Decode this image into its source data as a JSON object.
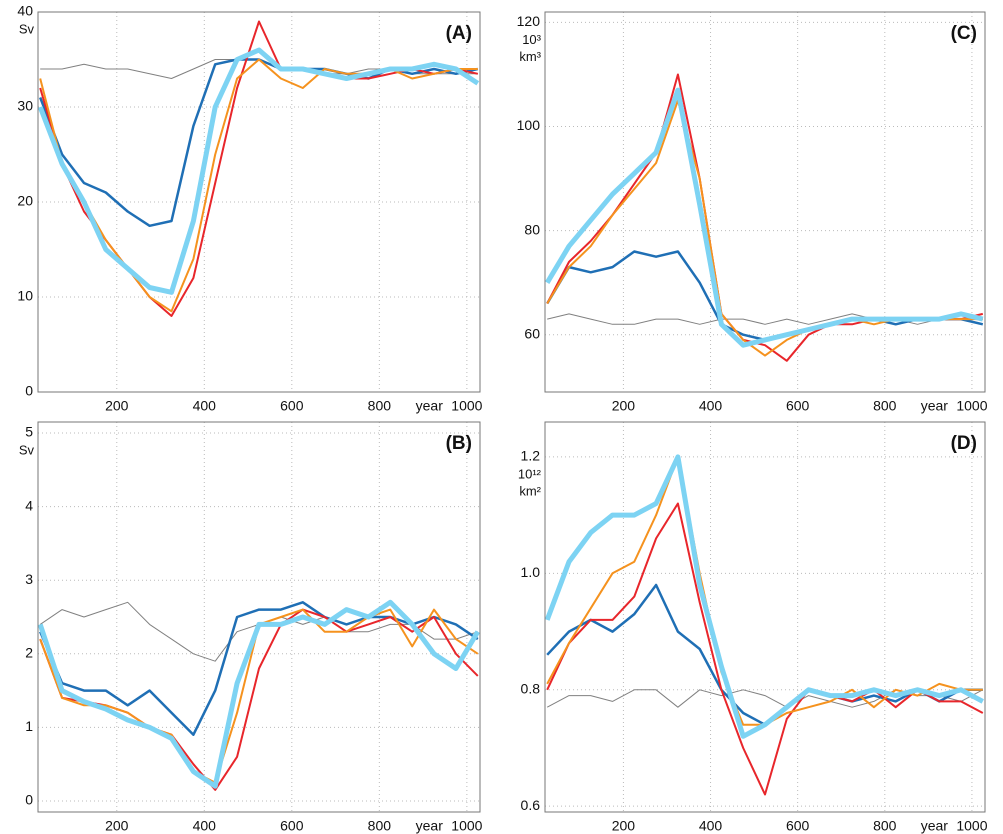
{
  "chart_data": [
    {
      "type": "line",
      "panel_label": "(A)",
      "y_unit": [
        "Sv"
      ],
      "x_label": "year",
      "grid": true,
      "xlim": [
        20,
        1030
      ],
      "ylim": [
        0,
        40
      ],
      "xticks": [
        200,
        400,
        600,
        800,
        1000
      ],
      "yticks": [
        0,
        10,
        20,
        30,
        40
      ],
      "x": [
        25,
        75,
        125,
        175,
        225,
        275,
        325,
        375,
        425,
        475,
        525,
        575,
        625,
        675,
        725,
        775,
        825,
        875,
        925,
        975,
        1025
      ],
      "series": [
        {
          "color": "#808080",
          "values": [
            34,
            34,
            34.5,
            34,
            34,
            33.5,
            33,
            34,
            35,
            35,
            35,
            34,
            34,
            33.5,
            33.5,
            34,
            34,
            33.5,
            33.5,
            33.5,
            33.5
          ]
        },
        {
          "color": "#1f6fb5",
          "values": [
            31,
            25,
            22,
            21,
            19,
            17.5,
            18,
            28,
            34.5,
            35,
            35,
            34,
            34,
            34,
            33.5,
            33,
            34,
            33.5,
            34,
            33.5,
            34
          ]
        },
        {
          "color": "#e8262b",
          "values": [
            32,
            24,
            19,
            16,
            13,
            10,
            8,
            12,
            22,
            32,
            39,
            34,
            34,
            33.5,
            33,
            33,
            33.5,
            34,
            33.5,
            34,
            33.5
          ]
        },
        {
          "color": "#f5921e",
          "values": [
            33,
            24,
            20,
            16,
            13,
            10,
            8.5,
            14,
            25,
            33,
            35,
            33,
            32,
            34,
            33.5,
            33.5,
            34,
            33,
            33.5,
            34,
            34
          ]
        },
        {
          "color": "#7dd3f3",
          "values": [
            30,
            24,
            20,
            15,
            13,
            11,
            10.5,
            18,
            30,
            35,
            36,
            34,
            34,
            33.5,
            33,
            33.5,
            34,
            34,
            34.5,
            34,
            32.5
          ]
        }
      ]
    },
    {
      "type": "line",
      "panel_label": "(B)",
      "y_unit": [
        "Sv"
      ],
      "x_label": "year",
      "grid": true,
      "xlim": [
        20,
        1030
      ],
      "ylim": [
        -0.15,
        5.15
      ],
      "xticks": [
        200,
        400,
        600,
        800,
        1000
      ],
      "yticks": [
        0,
        1,
        2,
        3,
        4,
        5
      ],
      "x": [
        25,
        75,
        125,
        175,
        225,
        275,
        325,
        375,
        425,
        475,
        525,
        575,
        625,
        675,
        725,
        775,
        825,
        875,
        925,
        975,
        1025
      ],
      "series": [
        {
          "color": "#808080",
          "values": [
            2.4,
            2.6,
            2.5,
            2.6,
            2.7,
            2.4,
            2.2,
            2.0,
            1.9,
            2.3,
            2.4,
            2.5,
            2.4,
            2.5,
            2.3,
            2.3,
            2.4,
            2.4,
            2.2,
            2.2,
            2.3
          ]
        },
        {
          "color": "#1f6fb5",
          "values": [
            2.3,
            1.6,
            1.5,
            1.5,
            1.3,
            1.5,
            1.2,
            0.9,
            1.5,
            2.5,
            2.6,
            2.6,
            2.7,
            2.5,
            2.4,
            2.5,
            2.5,
            2.4,
            2.5,
            2.4,
            2.2
          ]
        },
        {
          "color": "#e8262b",
          "values": [
            2.2,
            1.4,
            1.35,
            1.3,
            1.2,
            1.0,
            0.9,
            0.5,
            0.15,
            0.6,
            1.8,
            2.4,
            2.6,
            2.5,
            2.3,
            2.4,
            2.5,
            2.3,
            2.5,
            2.0,
            1.7
          ]
        },
        {
          "color": "#f5921e",
          "values": [
            2.2,
            1.4,
            1.3,
            1.3,
            1.2,
            1.0,
            0.9,
            0.4,
            0.25,
            1.2,
            2.4,
            2.5,
            2.6,
            2.3,
            2.3,
            2.5,
            2.6,
            2.1,
            2.6,
            2.2,
            2.0
          ]
        },
        {
          "color": "#7dd3f3",
          "values": [
            2.4,
            1.5,
            1.35,
            1.25,
            1.1,
            1.0,
            0.85,
            0.4,
            0.2,
            1.6,
            2.4,
            2.4,
            2.5,
            2.4,
            2.6,
            2.5,
            2.7,
            2.4,
            2.0,
            1.8,
            2.3
          ]
        }
      ]
    },
    {
      "type": "line",
      "panel_label": "(C)",
      "y_unit": [
        "10³",
        "km³"
      ],
      "x_label": "year",
      "grid": true,
      "xlim": [
        20,
        1030
      ],
      "ylim": [
        49,
        122
      ],
      "xticks": [
        200,
        400,
        600,
        800,
        1000
      ],
      "yticks": [
        60,
        80,
        100,
        120
      ],
      "x": [
        25,
        75,
        125,
        175,
        225,
        275,
        325,
        375,
        425,
        475,
        525,
        575,
        625,
        675,
        725,
        775,
        825,
        875,
        925,
        975,
        1025
      ],
      "series": [
        {
          "color": "#808080",
          "values": [
            63,
            64,
            63,
            62,
            62,
            63,
            63,
            62,
            63,
            63,
            62,
            63,
            62,
            63,
            64,
            63,
            63,
            62,
            63,
            63,
            63
          ]
        },
        {
          "color": "#1f6fb5",
          "values": [
            66,
            73,
            72,
            73,
            76,
            75,
            76,
            70,
            62,
            60,
            59,
            60,
            61,
            62,
            63,
            63,
            62,
            63,
            63,
            63,
            62
          ]
        },
        {
          "color": "#e8262b",
          "values": [
            66,
            74,
            78,
            83,
            89,
            95,
            110,
            90,
            64,
            59,
            58,
            55,
            60,
            62,
            62,
            63,
            63,
            63,
            63,
            63,
            64
          ]
        },
        {
          "color": "#f5921e",
          "values": [
            66,
            73,
            77,
            83,
            88,
            93,
            105,
            90,
            64,
            59,
            56,
            59,
            61,
            62,
            63,
            62,
            63,
            63,
            63,
            63,
            63
          ]
        },
        {
          "color": "#7dd3f3",
          "values": [
            70,
            77,
            82,
            87,
            91,
            95,
            107,
            85,
            62,
            58,
            59,
            60,
            61,
            62,
            63,
            63,
            63,
            63,
            63,
            64,
            63
          ]
        }
      ]
    },
    {
      "type": "line",
      "panel_label": "(D)",
      "y_unit": [
        "10¹²",
        "km²"
      ],
      "x_label": "year",
      "grid": true,
      "xlim": [
        20,
        1030
      ],
      "ylim": [
        0.59,
        1.26
      ],
      "xticks": [
        200,
        400,
        600,
        800,
        1000
      ],
      "yticks": [
        0.6,
        0.8,
        {
          "value": 1,
          "label": "1.0"
        },
        1.2
      ],
      "x": [
        25,
        75,
        125,
        175,
        225,
        275,
        325,
        375,
        425,
        475,
        525,
        575,
        625,
        675,
        725,
        775,
        825,
        875,
        925,
        975,
        1025
      ],
      "series": [
        {
          "color": "#808080",
          "values": [
            0.77,
            0.79,
            0.79,
            0.78,
            0.8,
            0.8,
            0.77,
            0.8,
            0.79,
            0.8,
            0.79,
            0.77,
            0.79,
            0.78,
            0.77,
            0.78,
            0.8,
            0.79,
            0.79,
            0.78,
            0.8
          ]
        },
        {
          "color": "#1f6fb5",
          "values": [
            0.86,
            0.9,
            0.92,
            0.9,
            0.93,
            0.98,
            0.9,
            0.87,
            0.8,
            0.76,
            0.74,
            0.77,
            0.8,
            0.79,
            0.78,
            0.79,
            0.78,
            0.8,
            0.78,
            0.8,
            0.8
          ]
        },
        {
          "color": "#e8262b",
          "values": [
            0.8,
            0.88,
            0.92,
            0.92,
            0.96,
            1.06,
            1.12,
            0.95,
            0.8,
            0.7,
            0.62,
            0.75,
            0.8,
            0.79,
            0.78,
            0.8,
            0.77,
            0.8,
            0.78,
            0.78,
            0.76
          ]
        },
        {
          "color": "#f5921e",
          "values": [
            0.81,
            0.88,
            0.94,
            1.0,
            1.02,
            1.1,
            1.2,
            1.0,
            0.83,
            0.74,
            0.74,
            0.76,
            0.77,
            0.78,
            0.8,
            0.77,
            0.8,
            0.79,
            0.81,
            0.8,
            0.8
          ]
        },
        {
          "color": "#7dd3f3",
          "values": [
            0.92,
            1.02,
            1.07,
            1.1,
            1.1,
            1.12,
            1.2,
            0.98,
            0.84,
            0.72,
            0.74,
            0.77,
            0.8,
            0.79,
            0.79,
            0.8,
            0.79,
            0.8,
            0.79,
            0.8,
            0.78
          ]
        }
      ]
    }
  ]
}
